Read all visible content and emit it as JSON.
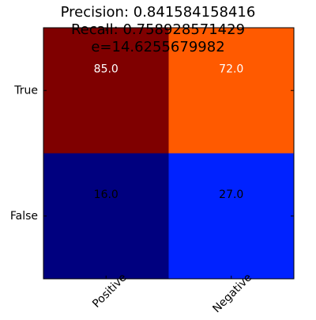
{
  "chart_data": {
    "type": "heatmap",
    "title_lines": [
      "Precision: 0.841584158416",
      "Recall: 0.758928571429",
      "e=14.6255679982"
    ],
    "row_labels": [
      "True",
      "False"
    ],
    "col_labels": [
      "Positive",
      "Negative"
    ],
    "values": [
      [
        85.0,
        72.0
      ],
      [
        16.0,
        27.0
      ]
    ],
    "cell_text": [
      [
        "85.0",
        "72.0"
      ],
      [
        "16.0",
        "27.0"
      ]
    ],
    "cell_colors": [
      [
        "#7f0000",
        "#ff5a00"
      ],
      [
        "#00007f",
        "#0022ff"
      ]
    ],
    "cell_text_colors": [
      [
        "#ffffff",
        "#ffffff"
      ],
      [
        "#000000",
        "#000000"
      ]
    ],
    "colormap": "jet",
    "xlabel": "",
    "ylabel": "",
    "x_tick_rotation_deg": 45,
    "grid": false,
    "legend": "none"
  }
}
